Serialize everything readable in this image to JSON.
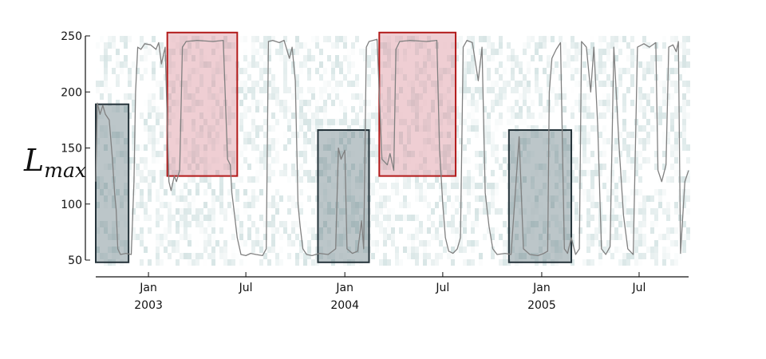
{
  "chart_data": {
    "type": "line",
    "title": "",
    "xlabel": "",
    "ylabel": {
      "main": "L",
      "sub": "max"
    },
    "ylim": [
      50,
      250
    ],
    "xlim": [
      "2002-09-25",
      "2005-10-01"
    ],
    "grid": false,
    "legend": "none",
    "y_ticks": [
      {
        "value": 50,
        "label": "50"
      },
      {
        "value": 100,
        "label": "100"
      },
      {
        "value": 150,
        "label": "150"
      },
      {
        "value": 200,
        "label": "200"
      },
      {
        "value": 250,
        "label": "250"
      }
    ],
    "x_ticks": [
      {
        "date": "2003-01-01",
        "label": "Jan",
        "year_label": "2003"
      },
      {
        "date": "2003-07-01",
        "label": "Jul",
        "year_label": ""
      },
      {
        "date": "2004-01-01",
        "label": "Jan",
        "year_label": "2004"
      },
      {
        "date": "2004-07-01",
        "label": "Jul",
        "year_label": ""
      },
      {
        "date": "2005-01-01",
        "label": "Jan",
        "year_label": "2005"
      },
      {
        "date": "2005-07-01",
        "label": "Jul",
        "year_label": ""
      }
    ],
    "series": [
      {
        "color": "#808080",
        "points": [
          [
            "2002-09-25",
            120
          ],
          [
            "2002-09-28",
            190
          ],
          [
            "2002-10-03",
            180
          ],
          [
            "2002-10-08",
            188
          ],
          [
            "2002-10-13",
            180
          ],
          [
            "2002-10-20",
            175
          ],
          [
            "2002-10-26",
            140
          ],
          [
            "2002-10-30",
            110
          ],
          [
            "2002-11-02",
            95
          ],
          [
            "2002-11-05",
            60
          ],
          [
            "2002-11-10",
            55
          ],
          [
            "2002-11-20",
            56
          ],
          [
            "2002-11-30",
            55
          ],
          [
            "2002-12-05",
            120
          ],
          [
            "2002-12-08",
            200
          ],
          [
            "2002-12-12",
            240
          ],
          [
            "2002-12-18",
            238
          ],
          [
            "2002-12-25",
            243
          ],
          [
            "2003-01-05",
            242
          ],
          [
            "2003-01-15",
            238
          ],
          [
            "2003-01-20",
            244
          ],
          [
            "2003-01-25",
            225
          ],
          [
            "2003-02-01",
            240
          ],
          [
            "2003-02-08",
            120
          ],
          [
            "2003-02-12",
            112
          ],
          [
            "2003-02-18",
            125
          ],
          [
            "2003-02-22",
            120
          ],
          [
            "2003-02-28",
            130
          ],
          [
            "2003-03-05",
            240
          ],
          [
            "2003-03-12",
            245
          ],
          [
            "2003-04-01",
            246
          ],
          [
            "2003-05-01",
            245
          ],
          [
            "2003-05-20",
            246
          ],
          [
            "2003-05-28",
            140
          ],
          [
            "2003-06-02",
            135
          ],
          [
            "2003-06-05",
            110
          ],
          [
            "2003-06-10",
            90
          ],
          [
            "2003-06-15",
            70
          ],
          [
            "2003-06-22",
            55
          ],
          [
            "2003-07-01",
            54
          ],
          [
            "2003-07-10",
            56
          ],
          [
            "2003-07-20",
            55
          ],
          [
            "2003-08-01",
            54
          ],
          [
            "2003-08-08",
            60
          ],
          [
            "2003-08-12",
            245
          ],
          [
            "2003-08-20",
            246
          ],
          [
            "2003-09-01",
            244
          ],
          [
            "2003-09-10",
            246
          ],
          [
            "2003-09-20",
            230
          ],
          [
            "2003-09-25",
            240
          ],
          [
            "2003-10-01",
            210
          ],
          [
            "2003-10-06",
            100
          ],
          [
            "2003-10-10",
            80
          ],
          [
            "2003-10-15",
            60
          ],
          [
            "2003-10-22",
            55
          ],
          [
            "2003-11-01",
            54
          ],
          [
            "2003-11-15",
            56
          ],
          [
            "2003-12-01",
            55
          ],
          [
            "2003-12-15",
            60
          ],
          [
            "2003-12-20",
            150
          ],
          [
            "2003-12-25",
            140
          ],
          [
            "2004-01-01",
            148
          ],
          [
            "2004-01-05",
            60
          ],
          [
            "2004-01-15",
            56
          ],
          [
            "2004-01-25",
            58
          ],
          [
            "2004-02-01",
            85
          ],
          [
            "2004-02-05",
            60
          ],
          [
            "2004-02-10",
            240
          ],
          [
            "2004-02-15",
            245
          ],
          [
            "2004-03-01",
            247
          ],
          [
            "2004-03-10",
            140
          ],
          [
            "2004-03-20",
            135
          ],
          [
            "2004-03-25",
            145
          ],
          [
            "2004-04-01",
            130
          ],
          [
            "2004-04-05",
            238
          ],
          [
            "2004-04-12",
            245
          ],
          [
            "2004-05-01",
            246
          ],
          [
            "2004-06-01",
            245
          ],
          [
            "2004-06-20",
            246
          ],
          [
            "2004-06-25",
            150
          ],
          [
            "2004-07-01",
            100
          ],
          [
            "2004-07-06",
            70
          ],
          [
            "2004-07-12",
            58
          ],
          [
            "2004-07-20",
            56
          ],
          [
            "2004-07-28",
            60
          ],
          [
            "2004-08-03",
            70
          ],
          [
            "2004-08-08",
            240
          ],
          [
            "2004-08-15",
            246
          ],
          [
            "2004-08-25",
            244
          ],
          [
            "2004-09-05",
            210
          ],
          [
            "2004-09-12",
            240
          ],
          [
            "2004-09-18",
            110
          ],
          [
            "2004-09-25",
            80
          ],
          [
            "2004-10-02",
            60
          ],
          [
            "2004-10-10",
            55
          ],
          [
            "2004-10-25",
            56
          ],
          [
            "2004-11-05",
            55
          ],
          [
            "2004-11-20",
            160
          ],
          [
            "2004-11-28",
            60
          ],
          [
            "2004-12-10",
            55
          ],
          [
            "2004-12-25",
            54
          ],
          [
            "2005-01-05",
            56
          ],
          [
            "2005-01-12",
            58
          ],
          [
            "2005-01-15",
            200
          ],
          [
            "2005-01-20",
            230
          ],
          [
            "2005-01-28",
            238
          ],
          [
            "2005-02-05",
            244
          ],
          [
            "2005-02-12",
            60
          ],
          [
            "2005-02-18",
            56
          ],
          [
            "2005-02-25",
            70
          ],
          [
            "2005-03-05",
            55
          ],
          [
            "2005-03-12",
            60
          ],
          [
            "2005-03-16",
            245
          ],
          [
            "2005-03-25",
            240
          ],
          [
            "2005-04-02",
            200
          ],
          [
            "2005-04-08",
            240
          ],
          [
            "2005-04-15",
            170
          ],
          [
            "2005-04-22",
            60
          ],
          [
            "2005-04-30",
            55
          ],
          [
            "2005-05-08",
            62
          ],
          [
            "2005-05-15",
            240
          ],
          [
            "2005-05-25",
            150
          ],
          [
            "2005-06-02",
            90
          ],
          [
            "2005-06-10",
            60
          ],
          [
            "2005-06-20",
            55
          ],
          [
            "2005-06-28",
            240
          ],
          [
            "2005-07-10",
            243
          ],
          [
            "2005-07-20",
            240
          ],
          [
            "2005-08-01",
            244
          ],
          [
            "2005-08-05",
            130
          ],
          [
            "2005-08-12",
            120
          ],
          [
            "2005-08-20",
            135
          ],
          [
            "2005-08-25",
            240
          ],
          [
            "2005-09-02",
            242
          ],
          [
            "2005-09-08",
            236
          ],
          [
            "2005-09-12",
            245
          ],
          [
            "2005-09-16",
            56
          ],
          [
            "2005-09-24",
            120
          ],
          [
            "2005-10-01",
            130
          ]
        ]
      }
    ],
    "highlight_boxes": [
      {
        "start": "2002-09-25",
        "end": "2002-11-25",
        "y_low": 48,
        "y_high": 189,
        "color": "dark"
      },
      {
        "start": "2003-02-05",
        "end": "2003-06-15",
        "y_low": 125,
        "y_high": 253,
        "color": "red"
      },
      {
        "start": "2003-11-12",
        "end": "2004-02-15",
        "y_low": 48,
        "y_high": 166,
        "color": "dark"
      },
      {
        "start": "2004-03-05",
        "end": "2004-07-25",
        "y_low": 125,
        "y_high": 253,
        "color": "red"
      },
      {
        "start": "2004-11-01",
        "end": "2005-02-25",
        "y_low": 48,
        "y_high": 166,
        "color": "dark"
      }
    ],
    "heatmap_color": "#5e9696",
    "line_color": "#808080",
    "box_colors": {
      "red": {
        "fill": "#d98b95",
        "stroke": "#b21a1a"
      },
      "dark": {
        "fill": "#60787f",
        "stroke": "#25333a"
      }
    }
  }
}
